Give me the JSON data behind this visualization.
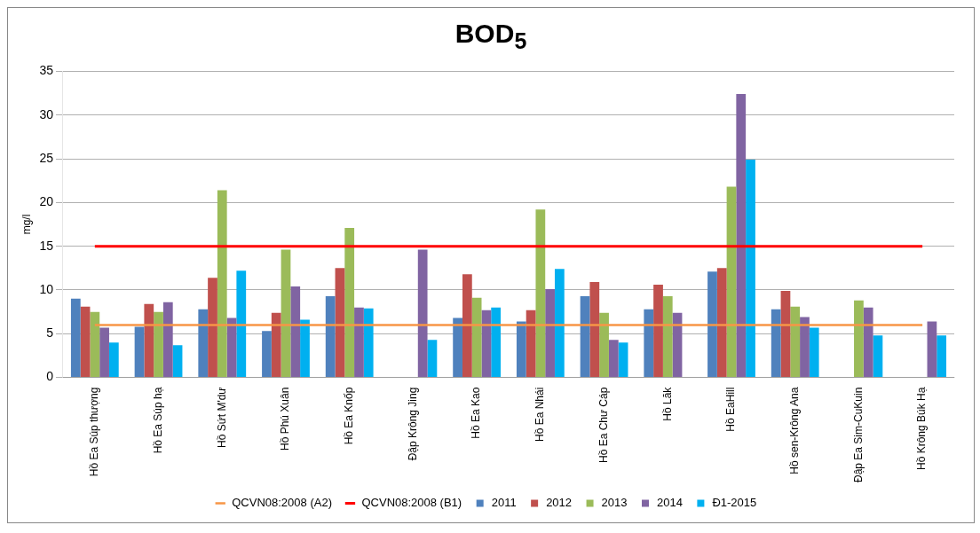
{
  "chart_data": {
    "type": "bar",
    "title": "BOD$_{5}$",
    "ylabel": "mg/l",
    "categories": [
      "Hồ Ea Súp thượng",
      "Hồ Ea Súp hạ",
      "Hồ Sứt M'dư",
      "Hồ Phú Xuân",
      "Hồ Ea Knốp",
      "Đập Krông Jing",
      "Hồ Ea Kao",
      "Hồ Ea Nhái",
      "Hồ Ea Chư Cáp",
      "Hồ Lăk",
      "Hồ EaHill",
      "Hồ sen-Krông Ana",
      "Đập Ea Sim-CuKuin",
      "Hồ Krông Búk Hạ"
    ],
    "series": [
      {
        "name": "2011",
        "color": "#4f81bd",
        "values": [
          9.0,
          5.8,
          7.8,
          5.3,
          9.3,
          null,
          6.8,
          6.4,
          9.3,
          7.8,
          12.1,
          7.8,
          null,
          null
        ]
      },
      {
        "name": "2012",
        "color": "#c0504d",
        "values": [
          8.1,
          8.4,
          11.4,
          7.4,
          12.5,
          null,
          11.8,
          7.7,
          10.9,
          10.6,
          12.5,
          9.9,
          null,
          null
        ]
      },
      {
        "name": "2013",
        "color": "#9bbb59",
        "values": [
          7.5,
          7.5,
          21.4,
          14.6,
          17.1,
          null,
          9.1,
          19.2,
          7.4,
          9.3,
          21.8,
          8.1,
          8.8,
          null
        ]
      },
      {
        "name": "2014",
        "color": "#8064a2",
        "values": [
          5.7,
          8.6,
          6.8,
          10.4,
          8.0,
          14.6,
          7.7,
          10.1,
          4.3,
          7.4,
          32.4,
          6.9,
          8.0,
          6.4
        ]
      },
      {
        "name": "Đ1-2015",
        "color": "#00b0f0",
        "values": [
          4.0,
          3.7,
          12.2,
          6.6,
          7.9,
          4.3,
          8.0,
          12.4,
          4.0,
          null,
          24.9,
          5.7,
          4.8,
          4.8
        ]
      },
      {
        "name": "QCVN08:2008 (A2)",
        "type": "line",
        "color": "#f79646",
        "values": [
          6,
          6,
          6,
          6,
          6,
          6,
          6,
          6,
          6,
          6,
          6,
          6,
          6,
          6
        ]
      },
      {
        "name": "QCVN08:2008 (B1)",
        "type": "line",
        "color": "#ff0000",
        "values": [
          15,
          15,
          15,
          15,
          15,
          15,
          15,
          15,
          15,
          15,
          15,
          15,
          15,
          15
        ]
      }
    ],
    "ylim": [
      0,
      35
    ],
    "yticks": [
      0,
      5,
      10,
      15,
      20,
      25,
      30,
      35
    ],
    "grid": "y",
    "legend": "bottom",
    "marker": "none"
  }
}
